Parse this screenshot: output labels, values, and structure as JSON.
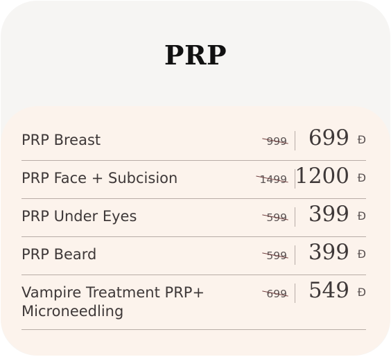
{
  "title": "PRP",
  "currency_symbol": "Đ",
  "items": [
    {
      "name": "PRP Breast",
      "old_price": "999",
      "price": "699"
    },
    {
      "name": "PRP Face + Subcision",
      "old_price": "1499",
      "price": "1200"
    },
    {
      "name": "PRP Under Eyes",
      "old_price": "599",
      "price": "399"
    },
    {
      "name": "PRP Beard",
      "old_price": "599",
      "price": "399"
    },
    {
      "name": "Vampire Treatment PRP+ Microneedling",
      "old_price": "699",
      "price": "549"
    }
  ]
}
